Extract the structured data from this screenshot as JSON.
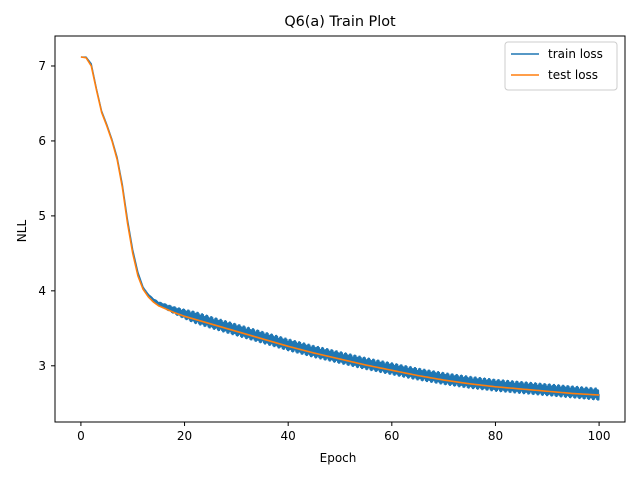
{
  "chart_data": {
    "type": "line",
    "title": "Q6(a) Train Plot",
    "xlabel": "Epoch",
    "ylabel": "NLL",
    "xlim": [
      -5,
      105
    ],
    "ylim": [
      2.25,
      7.4
    ],
    "xticks": [
      0,
      20,
      40,
      60,
      80,
      100
    ],
    "yticks": [
      3,
      4,
      5,
      6,
      7
    ],
    "xtick_labels": [
      "0",
      "20",
      "40",
      "60",
      "80",
      "100"
    ],
    "ytick_labels": [
      "3",
      "4",
      "5",
      "6",
      "7"
    ],
    "grid": false,
    "legend_position": "top-right",
    "colors": {
      "train": "#1f77b4",
      "test": "#ff7f0e"
    },
    "series": [
      {
        "name": "train loss",
        "note_oscillation_amplitude": 0.08,
        "x": [
          0,
          1,
          2,
          3,
          4,
          5,
          6,
          7,
          8,
          9,
          10,
          11,
          12,
          13,
          14,
          15,
          16,
          17,
          18,
          20,
          25,
          30,
          35,
          40,
          45,
          50,
          55,
          60,
          65,
          70,
          75,
          80,
          85,
          90,
          95,
          100
        ],
        "values": [
          7.12,
          7.12,
          7.03,
          6.7,
          6.4,
          6.22,
          6.02,
          5.78,
          5.42,
          4.95,
          4.55,
          4.25,
          4.05,
          3.95,
          3.88,
          3.83,
          3.8,
          3.77,
          3.74,
          3.69,
          3.58,
          3.48,
          3.38,
          3.28,
          3.19,
          3.11,
          3.03,
          2.96,
          2.89,
          2.83,
          2.78,
          2.74,
          2.71,
          2.68,
          2.65,
          2.62
        ]
      },
      {
        "name": "test loss",
        "x": [
          0,
          1,
          2,
          3,
          4,
          5,
          6,
          7,
          8,
          9,
          10,
          11,
          12,
          13,
          14,
          15,
          16,
          17,
          18,
          20,
          25,
          30,
          35,
          40,
          45,
          50,
          55,
          60,
          65,
          70,
          75,
          80,
          85,
          90,
          95,
          100
        ],
        "values": [
          7.12,
          7.11,
          7.0,
          6.68,
          6.38,
          6.2,
          6.0,
          5.75,
          5.38,
          4.9,
          4.5,
          4.2,
          4.02,
          3.92,
          3.85,
          3.8,
          3.77,
          3.74,
          3.71,
          3.66,
          3.56,
          3.46,
          3.36,
          3.26,
          3.17,
          3.09,
          3.01,
          2.94,
          2.87,
          2.81,
          2.76,
          2.72,
          2.69,
          2.66,
          2.63,
          2.61
        ]
      }
    ]
  }
}
